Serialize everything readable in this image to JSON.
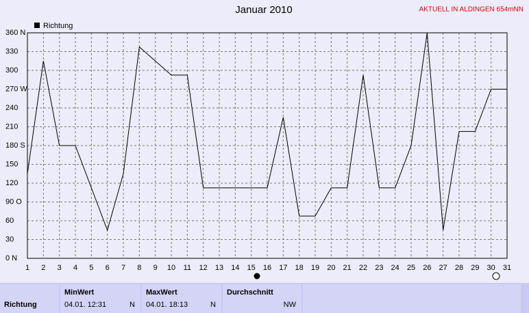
{
  "chart_data": {
    "type": "line",
    "title": "Januar 2010",
    "subtitle": "AKTUELL IN ALDINGEN 654mNN",
    "x": [
      1,
      2,
      3,
      4,
      5,
      6,
      7,
      8,
      9,
      10,
      11,
      12,
      13,
      14,
      15,
      16,
      17,
      18,
      19,
      20,
      21,
      22,
      23,
      24,
      25,
      26,
      27,
      28,
      29,
      30,
      31
    ],
    "series": [
      {
        "name": "Richtung",
        "color": "#000000",
        "values": [
          135,
          315,
          180,
          180,
          112.5,
          45,
          135,
          337.5,
          315,
          292.5,
          292.5,
          112.5,
          112.5,
          112.5,
          112.5,
          112.5,
          225,
          67.5,
          67.5,
          112.5,
          112.5,
          292.5,
          112.5,
          112.5,
          180,
          360,
          45,
          202.5,
          202.5,
          270,
          270
        ]
      }
    ],
    "xlim": [
      1,
      31
    ],
    "xticks": [
      1,
      2,
      3,
      4,
      5,
      6,
      7,
      8,
      9,
      10,
      11,
      12,
      13,
      14,
      15,
      16,
      17,
      18,
      19,
      20,
      21,
      22,
      23,
      24,
      25,
      26,
      27,
      28,
      29,
      30,
      31
    ],
    "ylim": [
      0,
      360
    ],
    "yticks": [
      {
        "value": 0,
        "label": "0 N"
      },
      30,
      60,
      {
        "value": 90,
        "label": "90 O"
      },
      120,
      150,
      {
        "value": 180,
        "label": "180 S"
      },
      210,
      240,
      {
        "value": 270,
        "label": "270 W"
      },
      300,
      330,
      {
        "value": 360,
        "label": "360 N"
      }
    ],
    "grid": true
  },
  "stats": {
    "row_label": "Richtung",
    "columns": [
      "MinWert",
      "MaxWert",
      "Durchschnitt"
    ],
    "min_time": "04.01.  12:31",
    "min_value": "N",
    "max_time": "04.01.  18:13",
    "max_value": "N",
    "avg_value": "NW"
  }
}
